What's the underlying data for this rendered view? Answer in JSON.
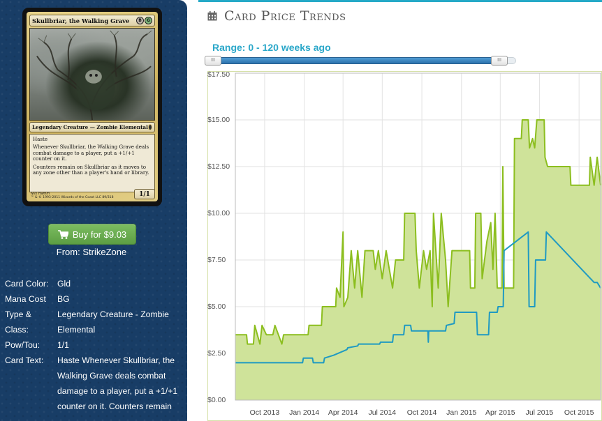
{
  "card": {
    "name": "Skullbriar, the Walking Grave",
    "mana_symbols": [
      "B",
      "G"
    ],
    "type_line": "Legendary Creature — Zombie Elemental",
    "rules_text": [
      "Haste",
      "Whenever Skullbriar, the Walking Grave deals combat damage to a player, put a +1/+1 counter on it.",
      "Counters remain on Skullbriar as it moves to any zone other than a player's hand or library."
    ],
    "artist": "Nils Hamm",
    "copyright": "™ & © 1993-2011 Wizards of the Coast LLC 89/318",
    "power_toughness": "1/1"
  },
  "buy": {
    "label": "Buy for $9.03",
    "from": "From: StrikeZone"
  },
  "details": [
    {
      "label": "Card Color:",
      "value": "Gld"
    },
    {
      "label": "Mana Cost",
      "value": "BG"
    },
    {
      "label": "Type & Class:",
      "value": "Legendary Creature - Zombie Elemental"
    },
    {
      "label": "Pow/Tou:",
      "value": "1/1"
    },
    {
      "label": "Card Text:",
      "value": "Haste Whenever Skullbriar, the Walking Grave deals combat damage to a player, put a +1/+1 counter on it. Counters remain"
    }
  ],
  "header": {
    "title": "Card Price Trends",
    "icon": "calendar-icon"
  },
  "range": {
    "label": "Range: 0 - 120 weeks ago",
    "min_weeks": 0,
    "max_weeks": 120,
    "handle_label": "III"
  },
  "colors": {
    "panel": "#183d66",
    "accent": "#25a9c7",
    "buy": "#6aaf4f",
    "series_high": "#8cbe1f",
    "series_low": "#1f9ac2",
    "fill": "#cfe39a"
  },
  "chart_data": {
    "type": "line",
    "title": "",
    "xlabel": "",
    "ylabel": "",
    "ylim": [
      0,
      17.5
    ],
    "y_ticks": [
      "$0.00",
      "$2.50",
      "$5.00",
      "$7.50",
      "$10.00",
      "$12.50",
      "$15.00",
      "$17.50"
    ],
    "y_tick_values": [
      0,
      2.5,
      5,
      7.5,
      10,
      12.5,
      15,
      17.5
    ],
    "xlim": [
      "2013-07-25",
      "2015-11-20"
    ],
    "x_ticks": [
      {
        "label": "Oct 2013",
        "date": "2013-10-01"
      },
      {
        "label": "Jan 2014",
        "date": "2014-01-01"
      },
      {
        "label": "Apr 2014",
        "date": "2014-04-01"
      },
      {
        "label": "Jul 2014",
        "date": "2014-07-01"
      },
      {
        "label": "Oct 2014",
        "date": "2014-10-01"
      },
      {
        "label": "Jan 2015",
        "date": "2015-01-01"
      },
      {
        "label": "Apr 2015",
        "date": "2015-04-01"
      },
      {
        "label": "Jul 2015",
        "date": "2015-07-01"
      },
      {
        "label": "Oct 2015",
        "date": "2015-10-01"
      }
    ],
    "grid": true,
    "series": [
      {
        "color": "#8cbe1f",
        "fill": true,
        "points": [
          [
            "2013-07-25",
            3.5
          ],
          [
            "2013-08-20",
            3.5
          ],
          [
            "2013-08-22",
            3.0
          ],
          [
            "2013-09-05",
            3.0
          ],
          [
            "2013-09-08",
            4.0
          ],
          [
            "2013-09-20",
            3.0
          ],
          [
            "2013-09-25",
            4.0
          ],
          [
            "2013-10-05",
            3.5
          ],
          [
            "2013-10-20",
            3.5
          ],
          [
            "2013-10-25",
            4.0
          ],
          [
            "2013-11-10",
            3.0
          ],
          [
            "2013-11-14",
            3.5
          ],
          [
            "2014-01-10",
            3.5
          ],
          [
            "2014-01-12",
            4.0
          ],
          [
            "2014-02-10",
            4.0
          ],
          [
            "2014-02-12",
            5.0
          ],
          [
            "2014-03-15",
            5.0
          ],
          [
            "2014-03-17",
            6.0
          ],
          [
            "2014-03-25",
            5.5
          ],
          [
            "2014-04-01",
            9.0
          ],
          [
            "2014-04-03",
            5.0
          ],
          [
            "2014-04-12",
            5.5
          ],
          [
            "2014-04-20",
            8.0
          ],
          [
            "2014-04-28",
            6.0
          ],
          [
            "2014-05-05",
            8.0
          ],
          [
            "2014-05-15",
            5.5
          ],
          [
            "2014-05-22",
            8.0
          ],
          [
            "2014-06-10",
            8.0
          ],
          [
            "2014-06-15",
            7.0
          ],
          [
            "2014-06-22",
            8.0
          ],
          [
            "2014-07-01",
            6.5
          ],
          [
            "2014-07-10",
            8.0
          ],
          [
            "2014-07-25",
            6.0
          ],
          [
            "2014-08-01",
            7.5
          ],
          [
            "2014-08-20",
            7.5
          ],
          [
            "2014-08-22",
            10.0
          ],
          [
            "2014-09-15",
            10.0
          ],
          [
            "2014-09-18",
            8.0
          ],
          [
            "2014-09-25",
            6.0
          ],
          [
            "2014-10-05",
            8.0
          ],
          [
            "2014-10-12",
            7.0
          ],
          [
            "2014-10-20",
            8.0
          ],
          [
            "2014-10-25",
            5.0
          ],
          [
            "2014-10-28",
            10.0
          ],
          [
            "2014-11-08",
            6.0
          ],
          [
            "2014-11-15",
            10.0
          ],
          [
            "2014-11-25",
            7.5
          ],
          [
            "2014-12-01",
            5.0
          ],
          [
            "2014-12-10",
            8.0
          ],
          [
            "2015-01-20",
            8.0
          ],
          [
            "2015-01-22",
            6.0
          ],
          [
            "2015-02-01",
            6.0
          ],
          [
            "2015-02-03",
            10.0
          ],
          [
            "2015-02-15",
            10.0
          ],
          [
            "2015-02-18",
            6.5
          ],
          [
            "2015-03-01",
            8.5
          ],
          [
            "2015-03-10",
            9.5
          ],
          [
            "2015-03-15",
            7.0
          ],
          [
            "2015-03-20",
            10.0
          ],
          [
            "2015-03-25",
            6.0
          ],
          [
            "2015-04-05",
            6.0
          ],
          [
            "2015-04-07",
            12.5
          ],
          [
            "2015-04-10",
            6.0
          ],
          [
            "2015-05-02",
            6.0
          ],
          [
            "2015-05-04",
            14.0
          ],
          [
            "2015-05-20",
            14.0
          ],
          [
            "2015-05-22",
            15.0
          ],
          [
            "2015-06-05",
            15.0
          ],
          [
            "2015-06-08",
            13.5
          ],
          [
            "2015-06-15",
            14.0
          ],
          [
            "2015-06-20",
            13.5
          ],
          [
            "2015-06-25",
            15.0
          ],
          [
            "2015-07-12",
            15.0
          ],
          [
            "2015-07-14",
            13.0
          ],
          [
            "2015-07-20",
            12.5
          ],
          [
            "2015-09-10",
            12.5
          ],
          [
            "2015-09-12",
            11.5
          ],
          [
            "2015-10-25",
            11.5
          ],
          [
            "2015-10-27",
            13.0
          ],
          [
            "2015-11-05",
            11.5
          ],
          [
            "2015-11-12",
            13.0
          ],
          [
            "2015-11-20",
            11.5
          ]
        ]
      },
      {
        "color": "#1f9ac2",
        "fill": false,
        "points": [
          [
            "2013-07-25",
            2.0
          ],
          [
            "2013-12-28",
            2.0
          ],
          [
            "2013-12-30",
            2.25
          ],
          [
            "2014-01-20",
            2.25
          ],
          [
            "2014-01-22",
            2.0
          ],
          [
            "2014-02-15",
            2.0
          ],
          [
            "2014-02-17",
            2.25
          ],
          [
            "2014-03-10",
            2.4
          ],
          [
            "2014-04-10",
            2.7
          ],
          [
            "2014-04-12",
            2.8
          ],
          [
            "2014-05-05",
            2.9
          ],
          [
            "2014-05-07",
            3.0
          ],
          [
            "2014-06-25",
            3.0
          ],
          [
            "2014-06-27",
            3.1
          ],
          [
            "2014-07-25",
            3.1
          ],
          [
            "2014-07-27",
            3.5
          ],
          [
            "2014-08-20",
            3.5
          ],
          [
            "2014-08-22",
            4.0
          ],
          [
            "2014-09-05",
            4.0
          ],
          [
            "2014-09-07",
            3.7
          ],
          [
            "2014-10-15",
            3.7
          ],
          [
            "2014-10-16",
            3.1
          ],
          [
            "2014-10-17",
            3.7
          ],
          [
            "2014-11-25",
            3.7
          ],
          [
            "2014-11-27",
            4.0
          ],
          [
            "2014-12-15",
            4.1
          ],
          [
            "2014-12-17",
            4.7
          ],
          [
            "2015-02-05",
            4.7
          ],
          [
            "2015-02-07",
            3.5
          ],
          [
            "2015-03-05",
            3.5
          ],
          [
            "2015-03-07",
            4.7
          ],
          [
            "2015-03-25",
            4.7
          ],
          [
            "2015-03-27",
            5.0
          ],
          [
            "2015-04-08",
            5.0
          ],
          [
            "2015-04-10",
            8.0
          ],
          [
            "2015-06-05",
            9.0
          ],
          [
            "2015-06-07",
            5.0
          ],
          [
            "2015-06-20",
            5.0
          ],
          [
            "2015-06-22",
            7.5
          ],
          [
            "2015-07-15",
            7.5
          ],
          [
            "2015-07-17",
            9.0
          ],
          [
            "2015-11-05",
            6.3
          ],
          [
            "2015-11-12",
            6.3
          ],
          [
            "2015-11-20",
            6.0
          ]
        ]
      }
    ]
  }
}
